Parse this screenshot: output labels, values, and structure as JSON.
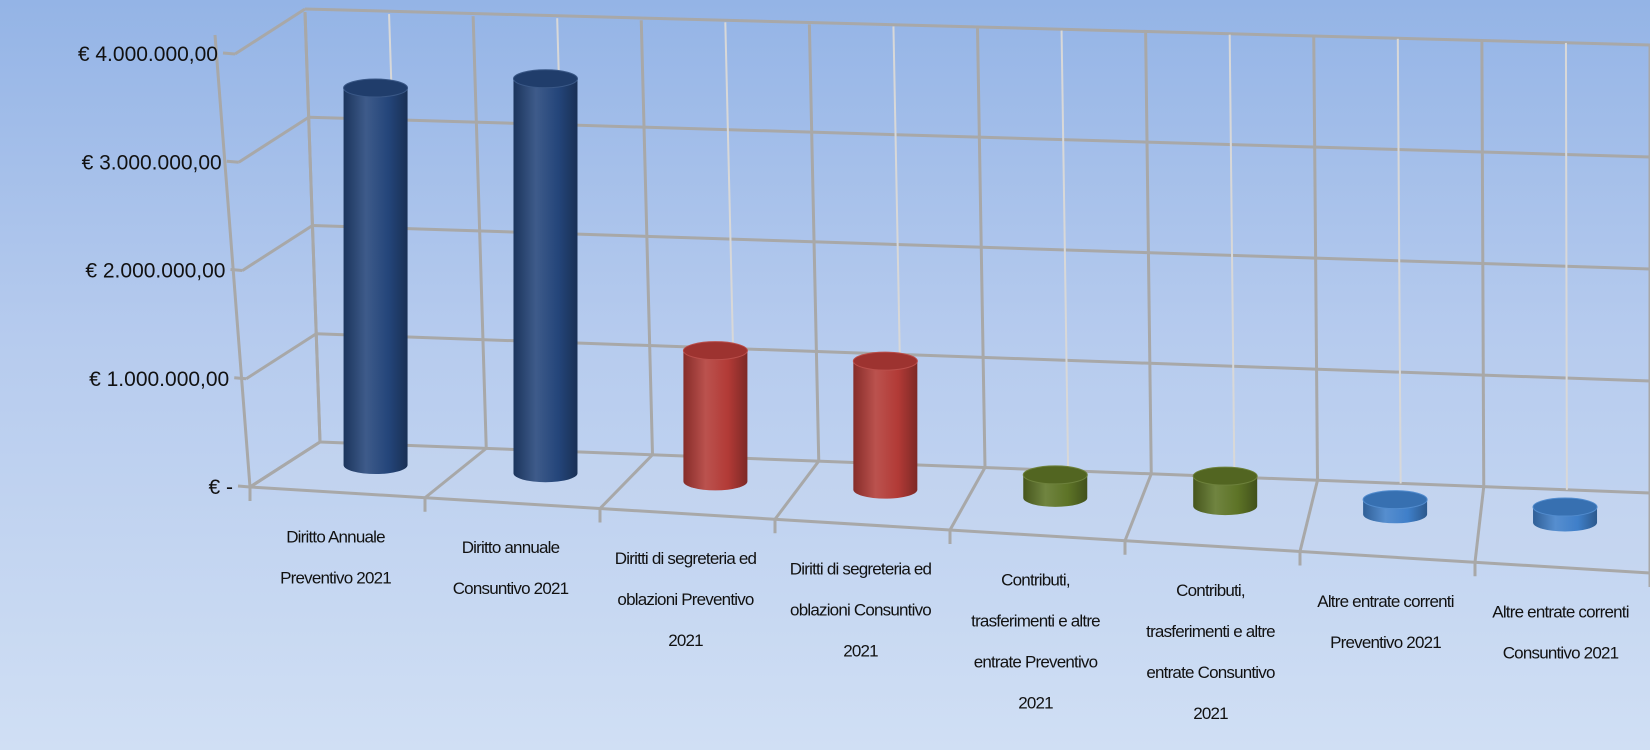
{
  "chart_data": {
    "type": "bar",
    "style": "3d-cylinder",
    "categories": [
      "Diritto Annuale Preventivo 2021",
      "Diritto annuale Consuntivo 2021",
      "Diritti di segreteria ed oblazioni Preventivo 2021",
      "Diritti di segreteria ed oblazioni Consuntivo 2021",
      "Contributi, trasferimenti e altre entrate Preventivo 2021",
      "Contributi, trasferimenti e altre entrate Consuntivo 2021",
      "Altre entrate correnti Preventivo 2021",
      "Altre entrate correnti Consuntivo 2021"
    ],
    "category_label_lines": [
      [
        "Diritto Annuale",
        "Preventivo 2021"
      ],
      [
        "Diritto annuale",
        "Consuntivo 2021"
      ],
      [
        "Diritti di segreteria ed",
        "oblazioni Preventivo",
        "2021"
      ],
      [
        "Diritti di segreteria ed",
        "oblazioni Consuntivo",
        "2021"
      ],
      [
        "Contributi,",
        "trasferimenti e altre",
        "entrate Preventivo",
        "2021"
      ],
      [
        "Contributi,",
        "trasferimenti e altre",
        "entrate Consuntivo",
        "2021"
      ],
      [
        "Altre entrate correnti",
        "Preventivo 2021"
      ],
      [
        "Altre entrate correnti",
        "Consuntivo 2021"
      ]
    ],
    "values": [
      3700000,
      3950000,
      1250000,
      1250000,
      120000,
      200000,
      30000,
      40000
    ],
    "bar_colors": [
      "#24457a",
      "#24457a",
      "#b23a36",
      "#b23a36",
      "#5d7326",
      "#5d7326",
      "#3f7fc9",
      "#3f7fc9"
    ],
    "ylim": [
      0,
      4000000
    ],
    "yticks": [
      0,
      1000000,
      2000000,
      3000000,
      4000000
    ],
    "ytick_labels": [
      "€ -",
      "€ 1.000.000,00",
      "€ 2.000.000,00",
      "€ 3.000.000,00",
      "€ 4.000.000,00"
    ],
    "title": "",
    "xlabel": "",
    "ylabel": "",
    "grid": true,
    "legend": "none"
  }
}
